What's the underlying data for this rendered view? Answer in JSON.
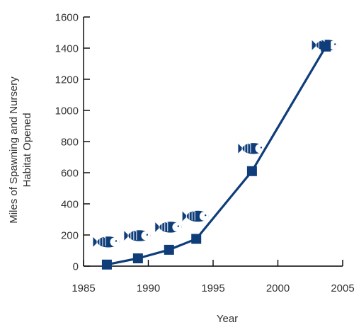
{
  "chart_data": {
    "type": "line",
    "title": "",
    "xlabel": "Year",
    "ylabel_lines": [
      "Miles of Spawning and Nursery",
      "Habitat Opened"
    ],
    "x": [
      1986.8,
      1989.2,
      1991.6,
      1993.7,
      1998.0,
      2003.7
    ],
    "values": [
      10,
      50,
      105,
      175,
      610,
      1410
    ],
    "xlim": [
      1985,
      2005
    ],
    "ylim": [
      0,
      1600
    ],
    "xticks": [
      1985,
      1990,
      1995,
      2000,
      2005
    ],
    "yticks": [
      0,
      200,
      400,
      600,
      800,
      1000,
      1200,
      1400,
      1600
    ],
    "grid": false,
    "marker": "square",
    "series_color": "#0f3d7a",
    "decoration_icon": "fish-icon"
  }
}
